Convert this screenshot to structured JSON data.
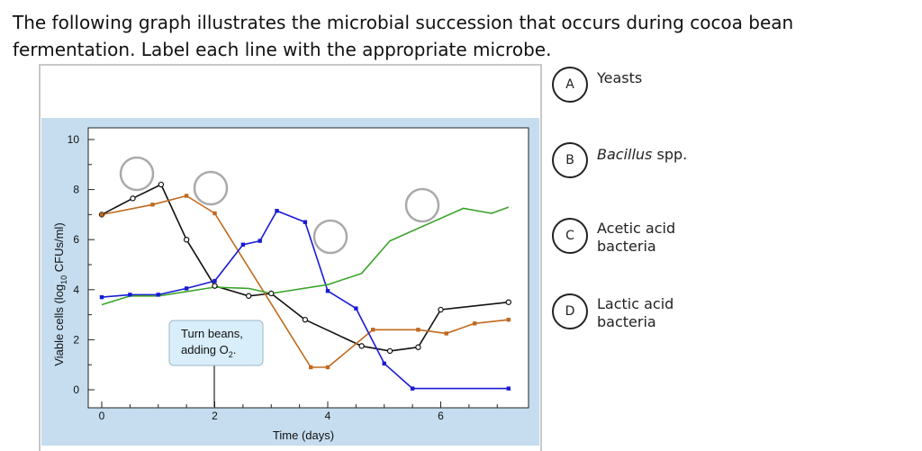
{
  "question": {
    "text": "The following graph illustrates the microbial succession that occurs during cocoa bean fermentation. Label each line with the appropriate microbe."
  },
  "answers": [
    {
      "letter": "A",
      "label": "Yeasts",
      "label_italic": "",
      "label_rest": ""
    },
    {
      "letter": "B",
      "label": "",
      "label_italic": "Bacillus",
      "label_rest": " spp."
    },
    {
      "letter": "C",
      "label": "Acetic acid bacteria",
      "label_italic": "",
      "label_rest": ""
    },
    {
      "letter": "D",
      "label": "Lactic acid bacteria",
      "label_italic": "",
      "label_rest": ""
    }
  ],
  "callout": {
    "line1": "Turn beans,",
    "line2": "adding O",
    "subscript": "2",
    "suffix": "."
  },
  "colors": {
    "black_series": "#111111",
    "orange_series": "#c06a1e",
    "blue_series": "#1a1ad6",
    "green_series": "#3aa52a",
    "figure_background": "#c5ddef",
    "drop_circle": "#aaaaaa"
  },
  "chart_data": {
    "type": "line",
    "title": "",
    "xlabel": "Time (days)",
    "ylabel": "Viable cells (log10 CFUs/ml)",
    "xlim": [
      -0.1,
      7.3
    ],
    "ylim": [
      -0.3,
      10.5
    ],
    "x_ticks": [
      0,
      2,
      4,
      6
    ],
    "y_ticks": [
      0,
      2,
      4,
      6,
      8,
      10
    ],
    "grid": false,
    "series": [
      {
        "color_key": "black_series",
        "marker": "open-circle",
        "points": [
          [
            0,
            7.0
          ],
          [
            0.55,
            7.65
          ],
          [
            1.05,
            8.2
          ],
          [
            1.5,
            6.0
          ],
          [
            2.0,
            4.15
          ],
          [
            2.6,
            3.75
          ],
          [
            3.0,
            3.85
          ],
          [
            3.6,
            2.8
          ],
          [
            4.6,
            1.75
          ],
          [
            5.1,
            1.55
          ],
          [
            5.6,
            1.7
          ],
          [
            6.0,
            3.2
          ],
          [
            7.2,
            3.5
          ]
        ]
      },
      {
        "color_key": "orange_series",
        "marker": "square",
        "points": [
          [
            0,
            7.0
          ],
          [
            0.9,
            7.4
          ],
          [
            1.5,
            7.75
          ],
          [
            2.0,
            7.05
          ],
          [
            3.7,
            0.9
          ],
          [
            4.0,
            0.9
          ],
          [
            4.8,
            2.4
          ],
          [
            5.6,
            2.4
          ],
          [
            6.1,
            2.25
          ],
          [
            6.6,
            2.65
          ],
          [
            7.2,
            2.8
          ]
        ]
      },
      {
        "color_key": "blue_series",
        "marker": "square",
        "points": [
          [
            0,
            3.7
          ],
          [
            0.5,
            3.8
          ],
          [
            1.0,
            3.8
          ],
          [
            1.5,
            4.05
          ],
          [
            2.0,
            4.35
          ],
          [
            2.5,
            5.8
          ],
          [
            2.8,
            5.95
          ],
          [
            3.1,
            7.15
          ],
          [
            3.6,
            6.7
          ],
          [
            4.0,
            3.95
          ],
          [
            4.5,
            3.25
          ],
          [
            5.0,
            1.05
          ],
          [
            5.5,
            0.05
          ],
          [
            7.2,
            0.05
          ]
        ]
      },
      {
        "color_key": "green_series",
        "marker": "none",
        "points": [
          [
            0,
            3.4
          ],
          [
            0.5,
            3.75
          ],
          [
            1.0,
            3.75
          ],
          [
            2.0,
            4.1
          ],
          [
            2.6,
            4.05
          ],
          [
            3.0,
            3.85
          ],
          [
            4.0,
            4.2
          ],
          [
            4.6,
            4.65
          ],
          [
            5.1,
            5.95
          ],
          [
            6.4,
            7.25
          ],
          [
            6.9,
            7.05
          ],
          [
            7.2,
            7.3
          ]
        ]
      }
    ],
    "annotation_marker_x": 2,
    "drop_targets_on_series": [
      "black_series",
      "orange_series",
      "blue_series",
      "green_series"
    ]
  }
}
